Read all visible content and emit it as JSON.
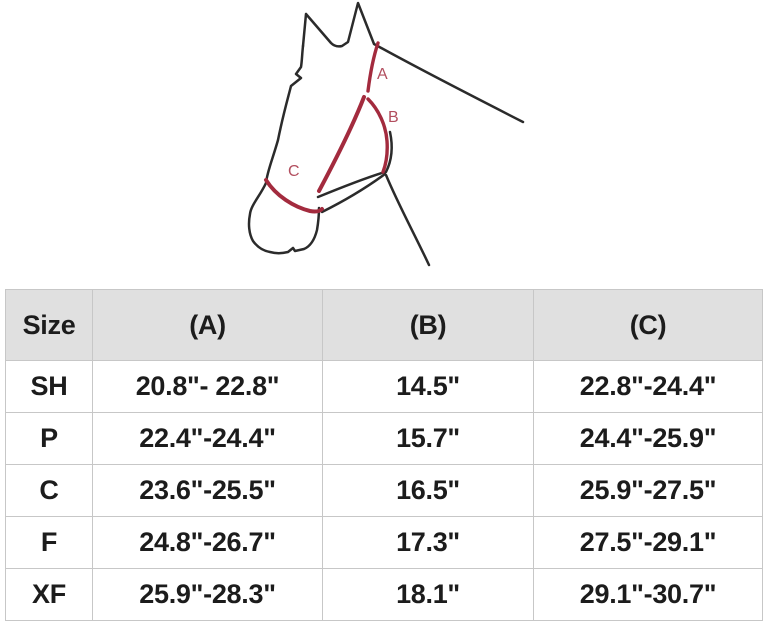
{
  "diagram": {
    "description": "Line drawing of a horse head wearing a halter with three measured straps",
    "labels": {
      "a": "A",
      "b": "B",
      "c": "C"
    },
    "colors": {
      "outline": "#2b2b2b",
      "strap": "#a32b3e",
      "label": "#b24e5e"
    }
  },
  "chart_data": {
    "type": "table",
    "columns": [
      "Size",
      "(A)",
      "(B)",
      "(C)"
    ],
    "rows": [
      {
        "size": "SH",
        "a": "20.8\"- 22.8\"",
        "b": "14.5\"",
        "c": "22.8\"-24.4\""
      },
      {
        "size": "P",
        "a": "22.4\"-24.4\"",
        "b": "15.7\"",
        "c": "24.4\"-25.9\""
      },
      {
        "size": "C",
        "a": "23.6\"-25.5\"",
        "b": "16.5\"",
        "c": "25.9\"-27.5\""
      },
      {
        "size": "F",
        "a": "24.8\"-26.7\"",
        "b": "17.3\"",
        "c": "27.5\"-29.1\""
      },
      {
        "size": "XF",
        "a": "25.9\"-28.3\"",
        "b": "18.1\"",
        "c": "29.1\"-30.7\""
      }
    ]
  },
  "styles": {
    "header_bg": "#e0e0e0",
    "border": "#c7c7c7",
    "text": "#1c1c1c"
  }
}
